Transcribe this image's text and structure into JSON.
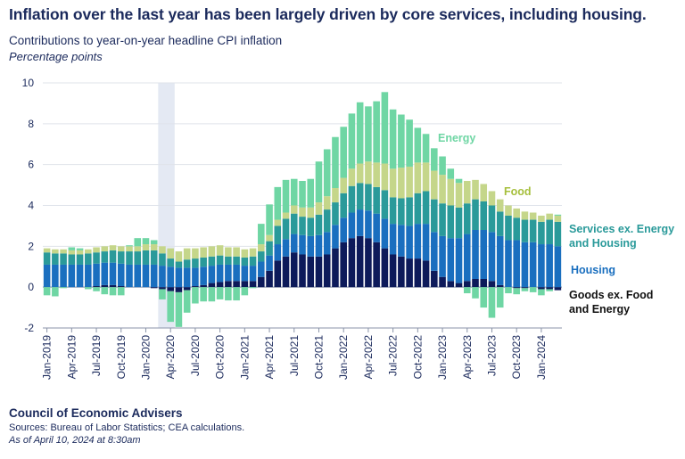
{
  "headline": "Inflation over the last year has been largely driven by core services, including housing.",
  "subtitle": "Contributions to year-on-year headline CPI inflation",
  "unit_label": "Percentage points",
  "footer": {
    "organization": "Council of Economic Advisers",
    "sources": "Sources: Bureau of Labor Statistics; CEA calculations.",
    "as_of": "As of April 10, 2024 at 8:30am"
  },
  "colors": {
    "goods": "#0d1a5a",
    "housing": "#1a6fbf",
    "services": "#2a9a9a",
    "food": "#c5d68a",
    "energy": "#6fd6a4",
    "shade": "#e4e9f3",
    "text": "#1b2a5c",
    "grid": "#dfe3ea"
  },
  "chart_data": {
    "type": "bar",
    "stacked": true,
    "x_ticks": [
      "Jan-2019",
      "Apr-2019",
      "Jul-2019",
      "Oct-2019",
      "Jan-2020",
      "Apr-2020",
      "Jul-2020",
      "Oct-2020",
      "Jan-2021",
      "Apr-2021",
      "Jul-2021",
      "Oct-2021",
      "Jan-2022",
      "Apr-2022",
      "Jul-2022",
      "Oct-2022",
      "Jan-2023",
      "Apr-2023",
      "Jul-2023",
      "Oct-2023",
      "Jan-2024"
    ],
    "y_ticks": [
      "10",
      "8",
      "6",
      "4",
      "2",
      "0",
      "-2"
    ],
    "ylim": [
      -2,
      10
    ],
    "grid": true,
    "shaded_period": [
      "Mar-2020",
      "Apr-2020"
    ],
    "categories": [
      "Jan-2019",
      "Feb-2019",
      "Mar-2019",
      "Apr-2019",
      "May-2019",
      "Jun-2019",
      "Jul-2019",
      "Aug-2019",
      "Sep-2019",
      "Oct-2019",
      "Nov-2019",
      "Dec-2019",
      "Jan-2020",
      "Feb-2020",
      "Mar-2020",
      "Apr-2020",
      "May-2020",
      "Jun-2020",
      "Jul-2020",
      "Aug-2020",
      "Sep-2020",
      "Oct-2020",
      "Nov-2020",
      "Dec-2020",
      "Jan-2021",
      "Feb-2021",
      "Mar-2021",
      "Apr-2021",
      "May-2021",
      "Jun-2021",
      "Jul-2021",
      "Aug-2021",
      "Sep-2021",
      "Oct-2021",
      "Nov-2021",
      "Dec-2021",
      "Jan-2022",
      "Feb-2022",
      "Mar-2022",
      "Apr-2022",
      "May-2022",
      "Jun-2022",
      "Jul-2022",
      "Aug-2022",
      "Sep-2022",
      "Oct-2022",
      "Nov-2022",
      "Dec-2022",
      "Jan-2023",
      "Feb-2023",
      "Mar-2023",
      "Apr-2023",
      "May-2023",
      "Jun-2023",
      "Jul-2023",
      "Aug-2023",
      "Sep-2023",
      "Oct-2023",
      "Nov-2023",
      "Dec-2023",
      "Jan-2024",
      "Feb-2024",
      "Mar-2024"
    ],
    "series": [
      {
        "name": "Goods ex. Food and Energy",
        "color_key": "goods",
        "values": [
          0,
          0,
          0,
          0,
          0,
          0,
          0.05,
          0.1,
          0.1,
          0.05,
          0,
          0,
          0,
          -0.05,
          -0.1,
          -0.2,
          -0.25,
          -0.15,
          0.05,
          0.1,
          0.2,
          0.25,
          0.3,
          0.3,
          0.3,
          0.3,
          0.5,
          0.8,
          1.3,
          1.5,
          1.7,
          1.6,
          1.5,
          1.5,
          1.6,
          1.9,
          2.2,
          2.4,
          2.5,
          2.4,
          2.2,
          1.9,
          1.6,
          1.5,
          1.4,
          1.4,
          1.3,
          0.8,
          0.5,
          0.3,
          0.2,
          0.3,
          0.4,
          0.4,
          0.3,
          0.1,
          0,
          -0.05,
          -0.05,
          0,
          -0.1,
          -0.1,
          -0.15
        ]
      },
      {
        "name": "Housing",
        "color_key": "housing",
        "values": [
          1.1,
          1.1,
          1.1,
          1.1,
          1.1,
          1.1,
          1.1,
          1.1,
          1.1,
          1.1,
          1.1,
          1.1,
          1.1,
          1.1,
          1.05,
          1.0,
          0.95,
          0.95,
          0.9,
          0.9,
          0.85,
          0.85,
          0.8,
          0.8,
          0.75,
          0.75,
          0.75,
          0.75,
          0.8,
          0.85,
          0.9,
          0.95,
          1.0,
          1.05,
          1.1,
          1.15,
          1.2,
          1.25,
          1.3,
          1.35,
          1.4,
          1.45,
          1.5,
          1.55,
          1.6,
          1.7,
          1.8,
          1.9,
          2.0,
          2.1,
          2.2,
          2.3,
          2.4,
          2.4,
          2.4,
          2.4,
          2.3,
          2.3,
          2.2,
          2.2,
          2.1,
          2.1,
          2.0
        ]
      },
      {
        "name": "Services ex. Energy and Housing",
        "color_key": "services",
        "values": [
          0.6,
          0.55,
          0.55,
          0.5,
          0.5,
          0.55,
          0.55,
          0.55,
          0.6,
          0.6,
          0.65,
          0.65,
          0.7,
          0.7,
          0.6,
          0.4,
          0.3,
          0.4,
          0.45,
          0.45,
          0.45,
          0.45,
          0.4,
          0.4,
          0.4,
          0.45,
          0.5,
          0.7,
          0.9,
          1.0,
          1.0,
          0.9,
          0.9,
          1.0,
          1.1,
          1.1,
          1.2,
          1.3,
          1.3,
          1.3,
          1.3,
          1.4,
          1.3,
          1.3,
          1.4,
          1.5,
          1.6,
          1.6,
          1.6,
          1.6,
          1.5,
          1.5,
          1.5,
          1.4,
          1.3,
          1.2,
          1.2,
          1.1,
          1.1,
          1.1,
          1.1,
          1.2,
          1.2
        ]
      },
      {
        "name": "Food",
        "color_key": "food",
        "values": [
          0.2,
          0.2,
          0.2,
          0.2,
          0.2,
          0.2,
          0.25,
          0.25,
          0.25,
          0.25,
          0.25,
          0.25,
          0.3,
          0.3,
          0.35,
          0.5,
          0.5,
          0.55,
          0.5,
          0.5,
          0.5,
          0.5,
          0.45,
          0.45,
          0.4,
          0.4,
          0.35,
          0.3,
          0.3,
          0.3,
          0.4,
          0.45,
          0.5,
          0.6,
          0.65,
          0.7,
          0.75,
          0.85,
          0.95,
          1.1,
          1.2,
          1.3,
          1.4,
          1.5,
          1.5,
          1.5,
          1.4,
          1.4,
          1.4,
          1.3,
          1.2,
          1.1,
          0.95,
          0.85,
          0.7,
          0.6,
          0.5,
          0.45,
          0.4,
          0.35,
          0.3,
          0.3,
          0.3
        ]
      },
      {
        "name": "Energy",
        "color_key": "energy",
        "values": [
          -0.4,
          -0.45,
          -0.05,
          0.15,
          0.1,
          -0.1,
          -0.2,
          -0.35,
          -0.4,
          -0.4,
          0.05,
          0.4,
          0.3,
          0.2,
          -0.5,
          -1.5,
          -1.7,
          -1.1,
          -0.8,
          -0.7,
          -0.7,
          -0.6,
          -0.65,
          -0.65,
          -0.4,
          -0.05,
          1.0,
          1.5,
          1.6,
          1.6,
          1.3,
          1.3,
          1.4,
          2.0,
          2.3,
          2.5,
          2.5,
          2.7,
          3.0,
          2.7,
          3.0,
          3.5,
          2.9,
          2.6,
          2.3,
          1.7,
          1.4,
          1.1,
          0.9,
          0.5,
          0.2,
          -0.3,
          -0.55,
          -1.0,
          -1.5,
          -1.0,
          -0.3,
          -0.3,
          -0.15,
          -0.25,
          -0.3,
          -0.1,
          0.05
        ]
      }
    ]
  }
}
